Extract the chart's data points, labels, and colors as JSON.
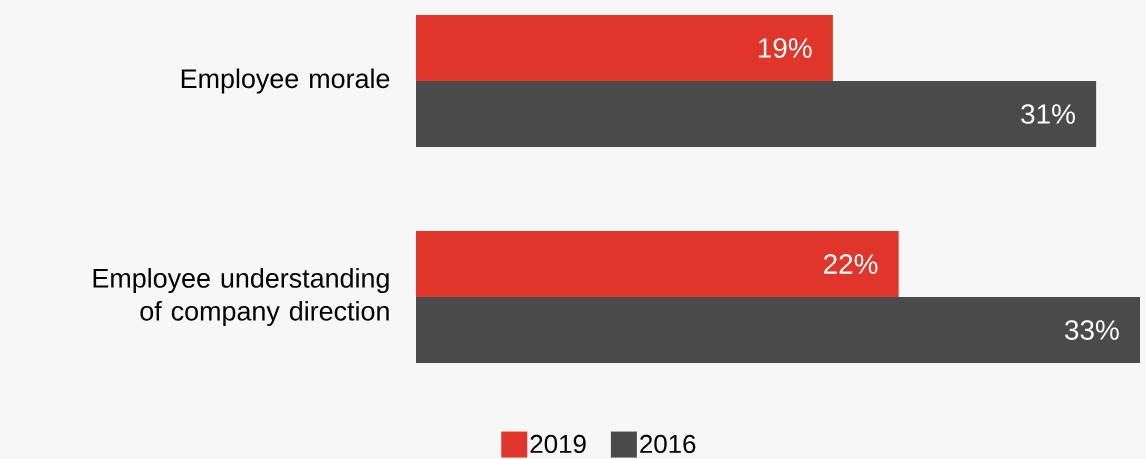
{
  "chart_data": {
    "type": "bar",
    "orientation": "horizontal",
    "categories": [
      "Employee morale",
      "Employee understanding of company direction"
    ],
    "series": [
      {
        "name": "2019",
        "color": "#e0352a",
        "values": [
          19,
          22
        ],
        "value_labels": [
          "19%",
          "22%"
        ]
      },
      {
        "name": "2016",
        "color": "#4a4a4a",
        "values": [
          31,
          33
        ],
        "value_labels": [
          "31%",
          "33%"
        ]
      }
    ],
    "legend": "bottom"
  }
}
